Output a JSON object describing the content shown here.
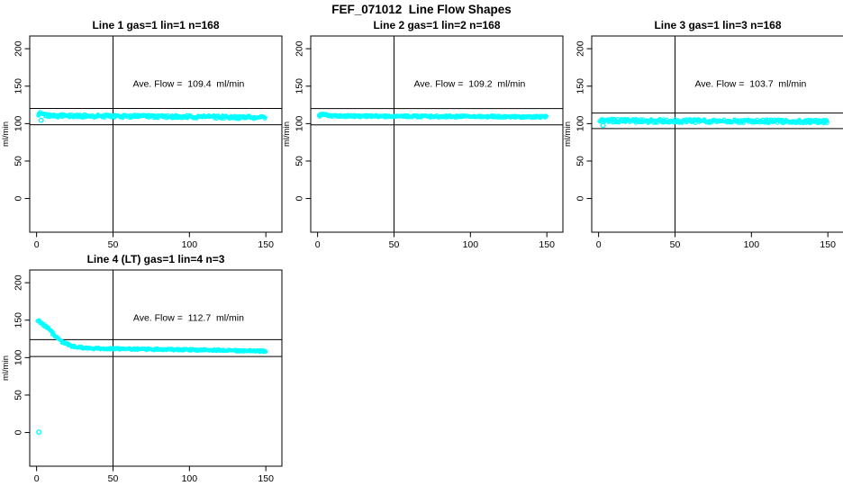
{
  "figure": {
    "title": "FEF_071012  Line Flow Shapes",
    "background_color": "#FFFFFF",
    "axis_color": "#000000",
    "marker_color": "#00FFFF"
  },
  "chart_data": [
    {
      "type": "scatter",
      "title": "Line 1 gas=1 lin=1 n=168",
      "xlabel": "",
      "ylabel": "ml/min",
      "annotation": "Ave. Flow =  109.4  ml/min",
      "ave_flow_ml_min": 109.4,
      "n_runs": 168,
      "marker": "open-circle",
      "marker_color": "#00FFFF",
      "xlim": [
        -4.5,
        160.5
      ],
      "ylim": [
        -45,
        217
      ],
      "xticks": [
        0,
        50,
        100,
        150
      ],
      "yticks": [
        0,
        50,
        100,
        150,
        200
      ],
      "vline_x": 50,
      "hlines_y": [
        120.3,
        98.5
      ],
      "band_halfwidth": 2.2,
      "profile": [
        [
          1,
          111
        ],
        [
          2,
          113.5
        ],
        [
          3,
          114
        ],
        [
          5,
          112.5
        ],
        [
          8,
          111
        ],
        [
          12,
          110.4
        ],
        [
          20,
          110.3
        ],
        [
          30,
          110.2
        ],
        [
          40,
          110.1
        ],
        [
          50,
          110
        ],
        [
          60,
          109.8
        ],
        [
          70,
          109.7
        ],
        [
          80,
          109.5
        ],
        [
          90,
          109.4
        ],
        [
          100,
          109.2
        ],
        [
          110,
          109
        ],
        [
          120,
          108.8
        ],
        [
          130,
          108.6
        ],
        [
          140,
          108.4
        ],
        [
          150,
          108.2
        ]
      ],
      "outliers": [
        [
          3,
          104.5
        ]
      ]
    },
    {
      "type": "scatter",
      "title": "Line 2 gas=1 lin=2 n=168",
      "xlabel": "",
      "ylabel": "ml/min",
      "annotation": "Ave. Flow =  109.2  ml/min",
      "ave_flow_ml_min": 109.2,
      "n_runs": 168,
      "marker": "open-circle",
      "marker_color": "#00FFFF",
      "xlim": [
        -4.5,
        160.5
      ],
      "ylim": [
        -45,
        217
      ],
      "xticks": [
        0,
        50,
        100,
        150
      ],
      "yticks": [
        0,
        50,
        100,
        150,
        200
      ],
      "vline_x": 50,
      "hlines_y": [
        120.1,
        98.3
      ],
      "band_halfwidth": 1.5,
      "profile": [
        [
          1,
          110.5
        ],
        [
          2,
          112
        ],
        [
          3,
          112.8
        ],
        [
          5,
          111.5
        ],
        [
          8,
          110.5
        ],
        [
          12,
          110.2
        ],
        [
          20,
          110
        ],
        [
          40,
          109.9
        ],
        [
          60,
          109.7
        ],
        [
          80,
          109.5
        ],
        [
          100,
          109.4
        ],
        [
          120,
          109.2
        ],
        [
          150,
          109
        ]
      ],
      "outliers": []
    },
    {
      "type": "scatter",
      "title": "Line 3 gas=1 lin=3 n=168",
      "xlabel": "",
      "ylabel": "ml/min",
      "annotation": "Ave. Flow =  103.7  ml/min",
      "ave_flow_ml_min": 103.7,
      "n_runs": 168,
      "marker": "open-circle",
      "marker_color": "#00FFFF",
      "xlim": [
        -4.5,
        160.5
      ],
      "ylim": [
        -45,
        217
      ],
      "xticks": [
        0,
        50,
        100,
        150
      ],
      "yticks": [
        0,
        50,
        100,
        150,
        200
      ],
      "vline_x": 50,
      "hlines_y": [
        114.1,
        93.3
      ],
      "band_halfwidth": 2.6,
      "profile": [
        [
          1,
          103.5
        ],
        [
          2,
          105.5
        ],
        [
          3,
          106
        ],
        [
          5,
          104.8
        ],
        [
          8,
          104
        ],
        [
          12,
          103.8
        ],
        [
          20,
          103.6
        ],
        [
          40,
          103.5
        ],
        [
          60,
          103.4
        ],
        [
          80,
          103.3
        ],
        [
          100,
          103.2
        ],
        [
          120,
          103
        ],
        [
          150,
          102.8
        ]
      ],
      "outliers": [
        [
          3,
          97.5
        ]
      ]
    },
    {
      "type": "scatter",
      "title": "Line 4 (LT) gas=1 lin=4 n=3",
      "xlabel": "",
      "ylabel": "ml/min",
      "annotation": "Ave. Flow =  112.7  ml/min",
      "ave_flow_ml_min": 112.7,
      "n_runs": 3,
      "marker": "open-circle",
      "marker_color": "#00FFFF",
      "xlim": [
        -4.5,
        160.5
      ],
      "ylim": [
        -45,
        217
      ],
      "xticks": [
        0,
        50,
        100,
        150
      ],
      "yticks": [
        0,
        50,
        100,
        150,
        200
      ],
      "vline_x": 50,
      "hlines_y": [
        124.0,
        101.4
      ],
      "band_halfwidth": 1.2,
      "profile": [
        [
          1,
          150
        ],
        [
          2,
          149
        ],
        [
          3,
          147
        ],
        [
          5,
          143.5
        ],
        [
          7,
          139.5
        ],
        [
          9,
          135.5
        ],
        [
          11,
          131.5
        ],
        [
          13,
          127.5
        ],
        [
          15,
          124
        ],
        [
          17,
          121
        ],
        [
          19,
          118.8
        ],
        [
          21,
          117
        ],
        [
          23,
          115.7
        ],
        [
          25,
          114.6
        ],
        [
          28,
          113.6
        ],
        [
          31,
          113
        ],
        [
          35,
          112.6
        ],
        [
          40,
          112.3
        ],
        [
          45,
          112.1
        ],
        [
          50,
          111.9
        ],
        [
          60,
          111.6
        ],
        [
          70,
          111.3
        ],
        [
          80,
          111
        ],
        [
          90,
          110.8
        ],
        [
          100,
          110.5
        ],
        [
          110,
          110.2
        ],
        [
          120,
          109.8
        ],
        [
          130,
          109.4
        ],
        [
          140,
          109
        ],
        [
          150,
          108.6
        ]
      ],
      "outliers": [
        [
          1.5,
          0.5
        ]
      ]
    }
  ]
}
